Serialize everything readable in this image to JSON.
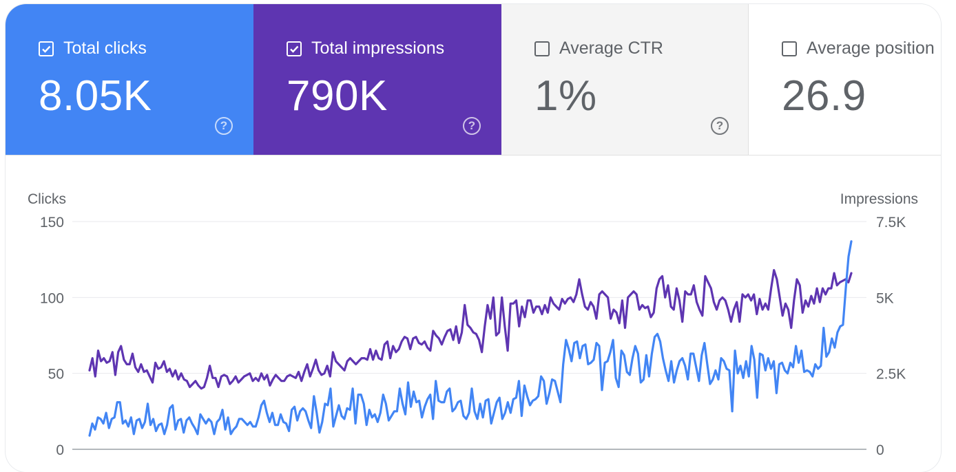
{
  "metrics": [
    {
      "label": "Total clicks",
      "value": "8.05K",
      "checked": true
    },
    {
      "label": "Total impressions",
      "value": "790K",
      "checked": true
    },
    {
      "label": "Average CTR",
      "value": "1%",
      "checked": false
    },
    {
      "label": "Average position",
      "value": "26.9",
      "checked": false
    }
  ],
  "help_glyph": "?",
  "colors": {
    "clicks": "#4285f4",
    "impressions": "#5e35b1",
    "grid": "#e8eaed",
    "axis_text": "#5f6368"
  },
  "chart_data": {
    "type": "line",
    "grid": true,
    "left_axis": {
      "label": "Clicks",
      "ticks": [
        "0",
        "50",
        "100",
        "150"
      ],
      "range": [
        0,
        150
      ]
    },
    "right_axis": {
      "label": "Impressions",
      "ticks": [
        "0",
        "2.5K",
        "5K",
        "7.5K"
      ],
      "range": [
        0,
        7500
      ]
    },
    "series": [
      {
        "name": "Clicks",
        "axis": "left",
        "values": [
          9,
          17,
          13,
          21,
          20,
          17,
          24,
          14,
          20,
          21,
          31,
          31,
          17,
          19,
          15,
          21,
          10,
          19,
          20,
          14,
          18,
          30,
          16,
          20,
          12,
          16,
          17,
          10,
          16,
          27,
          29,
          13,
          19,
          20,
          11,
          19,
          21,
          17,
          14,
          10,
          23,
          20,
          17,
          20,
          18,
          10,
          18,
          20,
          26,
          13,
          21,
          10,
          13,
          15,
          20,
          20,
          18,
          16,
          18,
          15,
          15,
          21,
          29,
          32,
          24,
          18,
          24,
          16,
          16,
          23,
          18,
          17,
          12,
          26,
          28,
          19,
          25,
          27,
          25,
          19,
          14,
          35,
          24,
          11,
          18,
          30,
          29,
          40,
          15,
          22,
          29,
          22,
          20,
          27,
          26,
          40,
          17,
          36,
          36,
          30,
          16,
          26,
          21,
          23,
          18,
          24,
          36,
          30,
          19,
          22,
          25,
          25,
          40,
          30,
          23,
          44,
          28,
          38,
          31,
          32,
          21,
          28,
          33,
          36,
          20,
          45,
          32,
          31,
          31,
          38,
          40,
          25,
          27,
          31,
          32,
          22,
          20,
          24,
          40,
          25,
          20,
          30,
          21,
          32,
          33,
          17,
          24,
          31,
          34,
          20,
          24,
          31,
          24,
          33,
          34,
          45,
          22,
          42,
          35,
          29,
          32,
          33,
          35,
          48,
          45,
          30,
          37,
          46,
          45,
          38,
          31,
          56,
          72,
          66,
          58,
          70,
          71,
          60,
          68,
          69,
          56,
          57,
          59,
          70,
          68,
          39,
          57,
          58,
          64,
          72,
          47,
          41,
          65,
          62,
          51,
          49,
          60,
          68,
          63,
          44,
          46,
          62,
          48,
          63,
          74,
          76,
          71,
          60,
          52,
          45,
          58,
          44,
          52,
          58,
          60,
          55,
          46,
          63,
          63,
          54,
          45,
          62,
          70,
          56,
          43,
          46,
          52,
          46,
          60,
          58,
          53,
          52,
          25,
          65,
          50,
          55,
          47,
          58,
          48,
          68,
          59,
          34,
          63,
          62,
          52,
          60,
          53,
          58,
          37,
          56,
          57,
          52,
          50,
          57,
          54,
          68,
          57,
          65,
          51,
          52,
          51,
          48,
          56,
          53,
          55,
          80,
          61,
          64,
          73,
          67,
          77,
          81,
          82,
          106,
          127,
          137
        ],
        "color": "#4285f4"
      },
      {
        "name": "Impressions",
        "axis": "right",
        "values": [
          2600,
          3000,
          2400,
          3250,
          2900,
          3000,
          2850,
          2900,
          3200,
          2450,
          3200,
          3400,
          2950,
          2800,
          2800,
          3150,
          2700,
          2550,
          2800,
          2550,
          2600,
          2400,
          2200,
          2850,
          2650,
          2700,
          2900,
          2550,
          2650,
          2400,
          2600,
          2300,
          2500,
          2300,
          2250,
          2050,
          2150,
          2250,
          2100,
          2000,
          2050,
          2350,
          2750,
          2350,
          2350,
          2050,
          2400,
          2450,
          2400,
          2150,
          2250,
          2400,
          2200,
          2300,
          2400,
          2450,
          2500,
          2250,
          2350,
          2250,
          2500,
          2300,
          2450,
          2100,
          2300,
          2450,
          2350,
          2250,
          2250,
          2400,
          2450,
          2400,
          2350,
          2550,
          2250,
          2550,
          2800,
          2400,
          2650,
          2950,
          2600,
          2450,
          2500,
          2750,
          2400,
          3200,
          2900,
          2800,
          2700,
          2600,
          2900,
          3000,
          2900,
          2800,
          2900,
          3000,
          3000,
          2950,
          3300,
          2950,
          3250,
          3000,
          2950,
          3450,
          3550,
          3000,
          3400,
          3200,
          3300,
          3550,
          3700,
          3650,
          3300,
          3650,
          3700,
          3500,
          3450,
          3550,
          3350,
          3250,
          3900,
          3750,
          3650,
          3450,
          3700,
          3900,
          3950,
          3600,
          4050,
          3500,
          3850,
          4750,
          4100,
          4000,
          3850,
          3800,
          3600,
          3200,
          4050,
          4750,
          4300,
          5000,
          3750,
          3850,
          5000,
          4050,
          3250,
          4800,
          4800,
          4900,
          4050,
          4700,
          4350,
          4900,
          4900,
          4500,
          4700,
          4700,
          4450,
          4750,
          4500,
          5000,
          4800,
          4700,
          4600,
          4950,
          4800,
          4950,
          5000,
          4850,
          5100,
          5600,
          5100,
          4700,
          4600,
          4850,
          4700,
          4300,
          5100,
          5200,
          5100,
          5000,
          4300,
          4600,
          4500,
          4150,
          4900,
          4000,
          5000,
          5100,
          5200,
          5100,
          4600,
          4750,
          4650,
          4700,
          4350,
          4500,
          5300,
          5600,
          5700,
          5000,
          5400,
          4700,
          4600,
          5300,
          4900,
          4200,
          5200,
          5100,
          5100,
          5400,
          4850,
          4600,
          4400,
          5700,
          5500,
          5300,
          4850,
          4600,
          4900,
          5000,
          4900,
          4600,
          4200,
          4600,
          4850,
          4200,
          5100,
          5000,
          5100,
          4900,
          5100,
          4450,
          4950,
          4600,
          4800,
          4600,
          5300,
          5900,
          5600,
          5000,
          4400,
          4800,
          4600,
          4000,
          4900,
          5600,
          5400,
          4500,
          4900,
          4700,
          5050,
          4800,
          5300,
          4850,
          5300,
          5100,
          5300,
          5300,
          5800,
          5400,
          5500,
          5550,
          5600,
          5500,
          5800
        ],
        "color": "#5e35b1"
      }
    ]
  }
}
